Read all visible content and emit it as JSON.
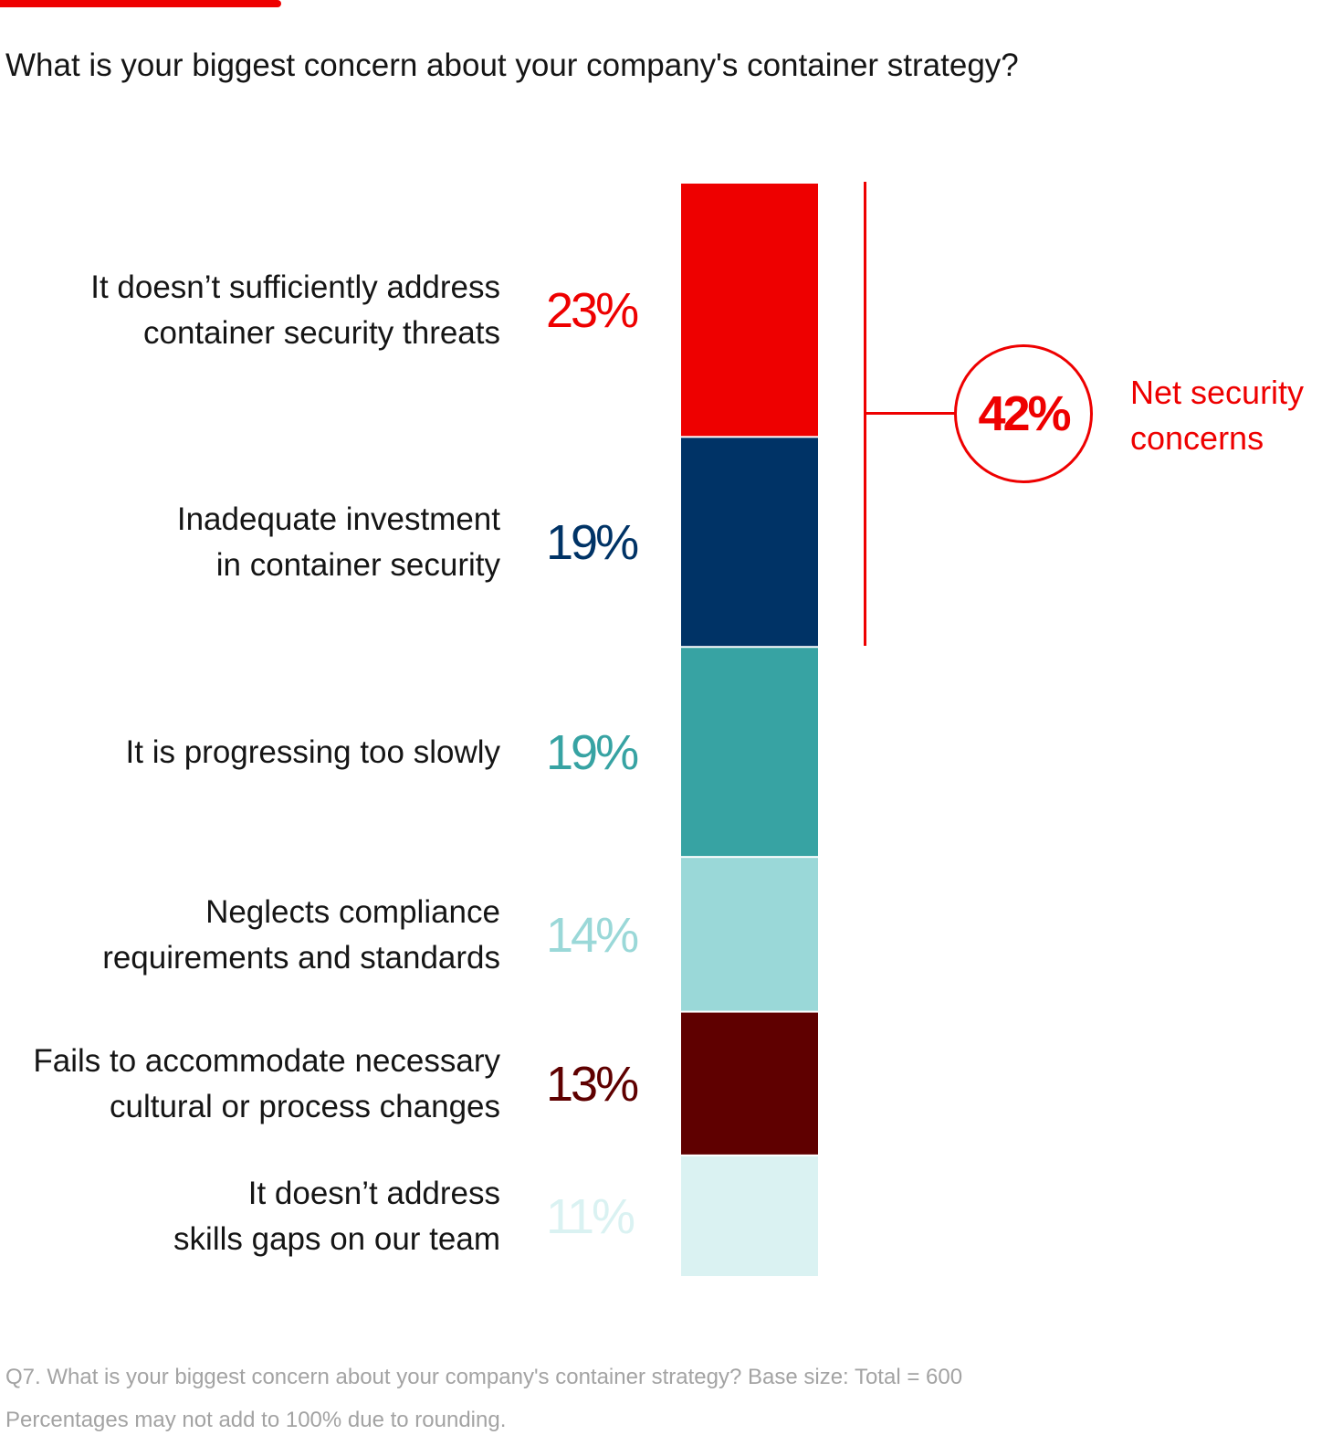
{
  "title": "What is your biggest concern about your company's container strategy?",
  "chart_data": {
    "type": "bar",
    "orientation": "stacked-single-column",
    "title": "What is your biggest concern about your company's container strategy?",
    "unit": "%",
    "categories": [
      [
        "It doesn’t sufficiently address",
        "container security threats"
      ],
      [
        "Inadequate investment",
        "in container security"
      ],
      [
        "It is progressing too slowly"
      ],
      [
        "Neglects compliance",
        "requirements and standards"
      ],
      [
        "Fails to accommodate necessary",
        "cultural or process changes"
      ],
      [
        "It doesn’t address",
        "skills gaps on our team"
      ]
    ],
    "values": [
      23,
      19,
      19,
      14,
      13,
      11
    ],
    "value_labels": [
      "23%",
      "19%",
      "19%",
      "14%",
      "13%",
      "11%"
    ],
    "colors": [
      "#ee0000",
      "#003366",
      "#37a3a3",
      "#9ad8d8",
      "#5f0000",
      "#daf2f2"
    ],
    "annotation": {
      "value": "42%",
      "label_lines": [
        "Net security",
        "concerns"
      ],
      "spans_categories": [
        0,
        1
      ],
      "color": "#ee0000"
    }
  },
  "footnotes": [
    "Q7. What is your biggest concern about your company's container strategy? Base size: Total = 600",
    "Percentages may not add to 100% due to rounding."
  ],
  "colors": {
    "accent": "#ee0000",
    "text": "#151515",
    "footnote": "#a3a3a3"
  }
}
